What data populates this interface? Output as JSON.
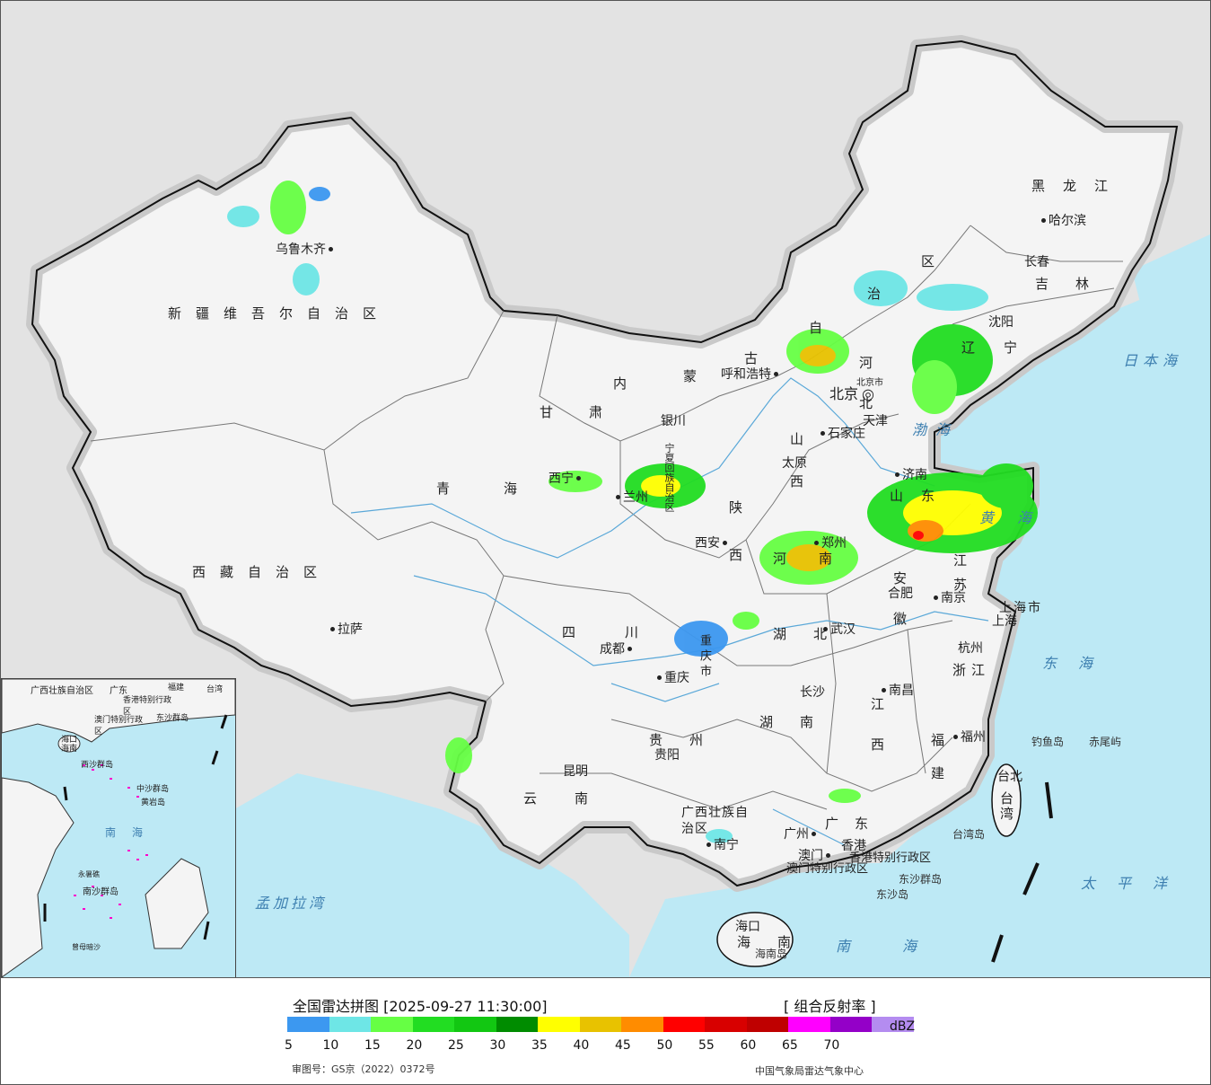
{
  "map": {
    "regions": {
      "xinjiang": "新疆维吾尔自治区",
      "xizang": "西藏自治区",
      "qinghai": "青海",
      "gansu": "甘肃",
      "neimenggu_1": "内",
      "neimenggu_2": "蒙",
      "neimenggu_3": "古",
      "neimenggu_4": "自",
      "neimenggu_5": "治",
      "neimenggu_6": "区",
      "heilongjiang": "黑龙江",
      "jilin": "吉林",
      "liaoning": "辽宁",
      "hebei": "河北",
      "shanxi": "山西",
      "shaanxi": "陕西",
      "ningxia": "宁夏回族自治区",
      "shandong": "山东",
      "henan": "河南",
      "jiangsu": "江苏",
      "anhui": "安徽",
      "hubei": "湖北",
      "sichuan": "四川",
      "chongqing": "重庆市",
      "zhejiang": "浙江",
      "jiangxi": "江西",
      "hunan": "湖南",
      "guizhou": "贵州",
      "yunnan": "云南",
      "fujian": "福建",
      "guangxi": "广西壮族自治区",
      "guangdong": "广东",
      "taiwan": "台湾",
      "hainan": "海南",
      "shanghai": "上海市",
      "hongkong": "香港特别行政区",
      "macau": "澳门特别行政区",
      "tianjin": "天津"
    },
    "cities": [
      {
        "key": "urumqi",
        "label": "乌鲁木齐"
      },
      {
        "key": "lhasa",
        "label": "拉萨"
      },
      {
        "key": "xining",
        "label": "西宁"
      },
      {
        "key": "lanzhou",
        "label": "兰州"
      },
      {
        "key": "yinchuan",
        "label": "银川"
      },
      {
        "key": "hohhot",
        "label": "呼和浩特"
      },
      {
        "key": "beijing",
        "label": "北京"
      },
      {
        "key": "beijing_city",
        "label": "北京市"
      },
      {
        "key": "tianjin",
        "label": "天津"
      },
      {
        "key": "shijiazhuang",
        "label": "石家庄"
      },
      {
        "key": "taiyuan",
        "label": "太原"
      },
      {
        "key": "jinan",
        "label": "济南"
      },
      {
        "key": "zhengzhou",
        "label": "郑州"
      },
      {
        "key": "xian",
        "label": "西安"
      },
      {
        "key": "hefei",
        "label": "合肥"
      },
      {
        "key": "nanjing",
        "label": "南京"
      },
      {
        "key": "shanghai",
        "label": "上海"
      },
      {
        "key": "hangzhou",
        "label": "杭州"
      },
      {
        "key": "wuhan",
        "label": "武汉"
      },
      {
        "key": "chengdu",
        "label": "成都"
      },
      {
        "key": "chongqing",
        "label": "重庆"
      },
      {
        "key": "changsha",
        "label": "长沙"
      },
      {
        "key": "nanchang",
        "label": "南昌"
      },
      {
        "key": "guiyang",
        "label": "贵阳"
      },
      {
        "key": "kunming",
        "label": "昆明"
      },
      {
        "key": "fuzhou",
        "label": "福州"
      },
      {
        "key": "taibei",
        "label": "台北"
      },
      {
        "key": "nanning",
        "label": "南宁"
      },
      {
        "key": "guangzhou",
        "label": "广州"
      },
      {
        "key": "xianggang",
        "label": "香港"
      },
      {
        "key": "aomen",
        "label": "澳门"
      },
      {
        "key": "haikou",
        "label": "海口"
      },
      {
        "key": "shenyang",
        "label": "沈阳"
      },
      {
        "key": "changchun",
        "label": "长春"
      },
      {
        "key": "harbin",
        "label": "哈尔滨"
      }
    ],
    "seas": {
      "bohai": "渤海",
      "huanghai": "黄海",
      "donghai": "东海",
      "nanhai": "南海",
      "riben": "日本海",
      "taiping": "太平洋",
      "mengjiala": "孟加拉湾"
    },
    "islands": {
      "diaoyu": "钓鱼岛",
      "chiwei": "赤尾屿",
      "taiwan_island": "台湾岛",
      "hainan_island": "海南岛",
      "dongsha": "东沙群岛",
      "dongsha_dao": "东沙岛"
    },
    "inset": {
      "guangxi": "广西壮族自治区",
      "guangdong": "广东",
      "fujian": "福建",
      "taiwan": "台湾",
      "hk": "香港特别行政区",
      "macau": "澳门特别行政区",
      "dongsha": "东沙群岛",
      "haikou": "海口",
      "hainan": "海南",
      "xisha": "西沙群岛",
      "zhongsha": "中沙群岛",
      "huangyan": "黄岩岛",
      "nanhai": "南海",
      "nansha": "南沙群岛",
      "yongshu": "永暑礁",
      "zengmu": "曾母暗沙"
    }
  },
  "legend": {
    "title": "全国雷达拼图 [2025-09-27 11:30:00]",
    "product": "[ 组合反射率 ]",
    "unit": "dBZ",
    "colors": [
      "#3c98f0",
      "#6ee6e6",
      "#66ff44",
      "#22dd22",
      "#12c712",
      "#008c00",
      "#ffff00",
      "#e8c200",
      "#ff8c00",
      "#ff0000",
      "#d80000",
      "#bf0000",
      "#ff00ff",
      "#9400c8",
      "#b48cf0"
    ],
    "ticks": [
      "5",
      "10",
      "15",
      "20",
      "25",
      "30",
      "35",
      "40",
      "45",
      "50",
      "55",
      "60",
      "65",
      "70"
    ],
    "approval": "审图号：GS京（2022）0372号",
    "agency": "中国气象局雷达气象中心"
  }
}
